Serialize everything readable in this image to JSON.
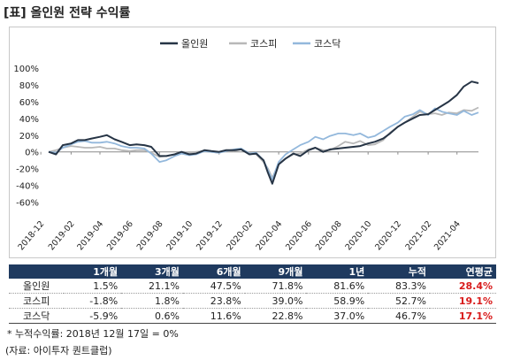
{
  "title": "[표] 올인원 전략 수익률",
  "colors": {
    "allinone": "#263445",
    "kospi": "#b8b8b8",
    "kosdaq": "#93b8dc",
    "header_bg": "#1f3a5f",
    "highlight": "#d81b1b"
  },
  "chart_data": {
    "type": "line",
    "ylim": [
      -70,
      100
    ],
    "yticks": [
      "100%",
      "80%",
      "60%",
      "40%",
      "20%",
      "0%",
      "-20%",
      "-40%",
      "-60%"
    ],
    "ytick_values": [
      100,
      80,
      60,
      40,
      20,
      0,
      -20,
      -40,
      -60
    ],
    "xticks": [
      "2018-12",
      "2019-02",
      "2019-04",
      "2019-06",
      "2019-08",
      "2019-10",
      "2019-12",
      "2020-02",
      "2020-04",
      "2020-06",
      "2020-08",
      "2020-10",
      "2020-12",
      "2021-02",
      "2021-04"
    ],
    "legend_position": "top-center",
    "grid": false,
    "x": [
      "2018-12-17",
      "2019-01-01",
      "2019-01-15",
      "2019-02-01",
      "2019-02-15",
      "2019-03-01",
      "2019-03-15",
      "2019-04-01",
      "2019-04-15",
      "2019-05-01",
      "2019-05-15",
      "2019-06-01",
      "2019-06-15",
      "2019-07-01",
      "2019-07-15",
      "2019-08-01",
      "2019-08-15",
      "2019-09-01",
      "2019-09-15",
      "2019-10-01",
      "2019-10-15",
      "2019-11-01",
      "2019-11-15",
      "2019-12-01",
      "2019-12-15",
      "2020-01-01",
      "2020-01-15",
      "2020-02-01",
      "2020-02-15",
      "2020-03-01",
      "2020-03-10",
      "2020-03-19",
      "2020-04-01",
      "2020-04-15",
      "2020-05-01",
      "2020-05-15",
      "2020-06-01",
      "2020-06-15",
      "2020-07-01",
      "2020-07-15",
      "2020-08-01",
      "2020-08-15",
      "2020-09-01",
      "2020-09-15",
      "2020-10-01",
      "2020-10-15",
      "2020-11-01",
      "2020-11-15",
      "2020-12-01",
      "2020-12-15",
      "2021-01-01",
      "2021-01-15",
      "2021-02-01",
      "2021-02-15",
      "2021-03-01",
      "2021-03-15",
      "2021-04-01",
      "2021-04-15",
      "2021-05-01",
      "2021-05-15"
    ],
    "series": [
      {
        "name": "올인원",
        "key": "allinone",
        "values": [
          0,
          -3,
          8,
          10,
          14,
          14,
          16,
          18,
          20,
          15,
          12,
          8,
          9,
          8,
          6,
          -5,
          -5,
          -3,
          0,
          -3,
          -2,
          2,
          1,
          0,
          2,
          2,
          3,
          -3,
          -2,
          -10,
          -25,
          -38,
          -15,
          -8,
          -2,
          -5,
          2,
          5,
          0,
          3,
          4,
          5,
          6,
          7,
          10,
          12,
          16,
          22,
          30,
          35,
          40,
          44,
          45,
          50,
          55,
          60,
          68,
          78,
          84,
          82
        ]
      },
      {
        "name": "코스피",
        "key": "kospi",
        "values": [
          0,
          2,
          5,
          7,
          6,
          5,
          5,
          6,
          4,
          4,
          2,
          1,
          2,
          2,
          -1,
          -6,
          -5,
          -3,
          0,
          -1,
          0,
          1,
          0,
          -1,
          2,
          1,
          3,
          -1,
          -3,
          -12,
          -20,
          -31,
          -14,
          -8,
          -3,
          -2,
          3,
          5,
          2,
          2,
          7,
          12,
          10,
          13,
          8,
          9,
          14,
          23,
          30,
          35,
          42,
          48,
          45,
          46,
          44,
          47,
          46,
          50,
          49,
          53
        ]
      },
      {
        "name": "코스닥",
        "key": "kosdaq",
        "values": [
          0,
          -1,
          5,
          9,
          12,
          13,
          11,
          11,
          12,
          10,
          7,
          5,
          5,
          4,
          -2,
          -12,
          -10,
          -5,
          -2,
          -4,
          -3,
          1,
          0,
          -1,
          1,
          3,
          4,
          -2,
          -1,
          -10,
          -22,
          -33,
          -12,
          -3,
          3,
          8,
          12,
          18,
          15,
          19,
          22,
          22,
          20,
          22,
          17,
          19,
          25,
          30,
          35,
          42,
          45,
          50,
          44,
          52,
          48,
          46,
          44,
          49,
          44,
          47
        ]
      }
    ]
  },
  "table": {
    "headers": [
      "",
      "1개월",
      "3개월",
      "6개월",
      "9개월",
      "1년",
      "누적",
      "연평균"
    ],
    "rows": [
      {
        "name": "올인원",
        "values": [
          "1.5%",
          "21.1%",
          "47.5%",
          "71.8%",
          "81.6%",
          "83.3%"
        ],
        "annual": "28.4%"
      },
      {
        "name": "코스피",
        "values": [
          "-1.8%",
          "1.8%",
          "23.8%",
          "39.0%",
          "58.9%",
          "52.7%"
        ],
        "annual": "19.1%"
      },
      {
        "name": "코스닥",
        "values": [
          "-5.9%",
          "0.6%",
          "11.6%",
          "22.8%",
          "37.0%",
          "46.7%"
        ],
        "annual": "17.1%"
      }
    ]
  },
  "note": "* 누적수익률: 2018년 12월 17일 = 0%",
  "source": "(자료: 아이투자 퀀트클럽)"
}
